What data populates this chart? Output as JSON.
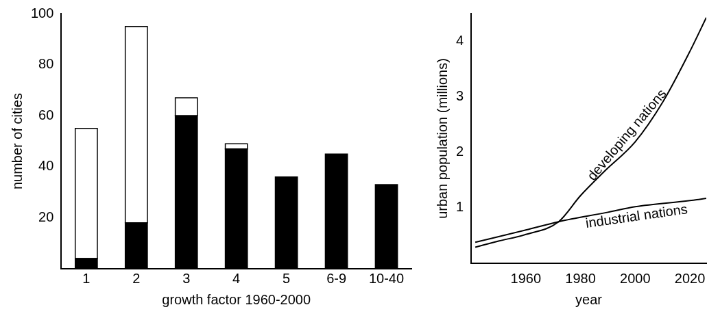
{
  "chart_data": [
    {
      "type": "bar",
      "stacked": true,
      "xlabel": "growth factor 1960-2000",
      "ylabel": "number of cities",
      "categories": [
        "1",
        "2",
        "3",
        "4",
        "5",
        "6-9",
        "10-40"
      ],
      "series": [
        {
          "color": "#000000",
          "values": [
            4,
            18,
            60,
            47,
            36,
            45,
            33
          ]
        },
        {
          "color": "#ffffff",
          "values": [
            51,
            77,
            7,
            2,
            0,
            0,
            0
          ]
        }
      ],
      "ylim": [
        0,
        100
      ],
      "yticks": [
        20,
        40,
        60,
        80,
        100
      ],
      "grid": false,
      "legend": false
    },
    {
      "type": "line",
      "xlabel": "year",
      "ylabel": "urban population (millions)",
      "xlim": [
        1940,
        2026
      ],
      "xticks": [
        1960,
        1980,
        2000,
        2020
      ],
      "ylim": [
        0,
        4.5
      ],
      "yticks": [
        1,
        2,
        3,
        4
      ],
      "grid": false,
      "legend": false,
      "marker": "none",
      "line_style": "solid",
      "series": [
        {
          "name": "developing nations",
          "color": "#000000",
          "x": [
            1941.5,
            1950,
            1960,
            1972,
            1980,
            1989,
            2000,
            2010,
            2020,
            2026
          ],
          "values": [
            0.29,
            0.4,
            0.52,
            0.75,
            1.22,
            1.67,
            2.19,
            2.9,
            3.82,
            4.43
          ]
        },
        {
          "name": "industrial nations",
          "color": "#000000",
          "x": [
            1941.5,
            1960,
            1972,
            1990,
            2000,
            2020,
            2026
          ],
          "values": [
            0.38,
            0.6,
            0.75,
            0.92,
            1.02,
            1.13,
            1.17
          ]
        }
      ]
    }
  ]
}
